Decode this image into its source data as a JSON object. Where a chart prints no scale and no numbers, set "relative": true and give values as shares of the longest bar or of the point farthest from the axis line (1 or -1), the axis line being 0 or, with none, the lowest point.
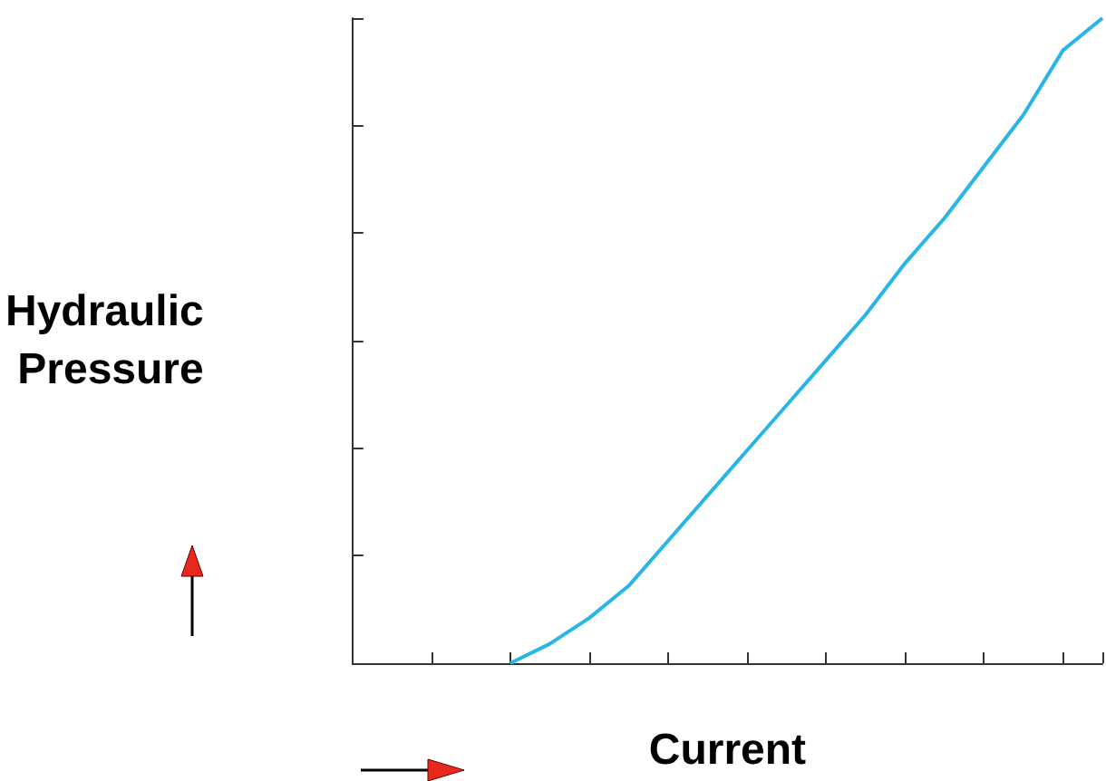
{
  "chart_data": {
    "type": "line",
    "xlabel": "Current",
    "ylabel": "Hydraulic Pressure",
    "relative": true,
    "categories": [
      null,
      null,
      null,
      null,
      null,
      null,
      null,
      null,
      null,
      null,
      null,
      null,
      null,
      null,
      null,
      null,
      null,
      null,
      null,
      null
    ],
    "series": [
      {
        "color": "#29b6e6",
        "values": [
          null,
          null,
          null,
          null,
          0,
          0.03,
          0.07,
          0.12,
          0.19,
          0.26,
          0.33,
          0.4,
          0.47,
          0.54,
          0.62,
          0.69,
          0.77,
          0.85,
          0.95,
          1
        ]
      }
    ],
    "grid": false
  }
}
